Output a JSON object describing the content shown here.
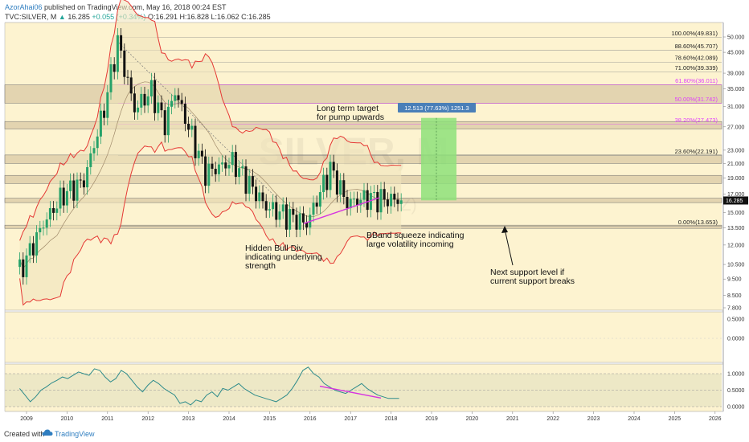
{
  "header": {
    "author": "AzorAhai06",
    "published": "published on TradingView.com, May 16, 2018 00:24 EST",
    "symbol": "TVC:SILVER, M",
    "last": "16.285",
    "change": "+0.055 (+0.34%)",
    "open": "O:16.291",
    "high": "H:16.828",
    "low": "L:16.062",
    "close": "C:16.285"
  },
  "footer": {
    "created": "Created with",
    "brand": "TradingView"
  },
  "watermark": "SILVER, M",
  "watermark_sub": "(USD/OZ)",
  "colors": {
    "background": "#fdf3d0",
    "up_candle": "#26a269",
    "down_candle": "#111111",
    "bband": "#e53935",
    "fib_line": "#888888",
    "fib_magenta": "#e040fb",
    "divergence": "#d633e0",
    "target_box": "#8ee07a",
    "rsi_line": "#2e8b8b",
    "price_tag": "#111111"
  },
  "chart_data": {
    "type": "candlestick",
    "timeframe": "Monthly",
    "x_ticks": [
      "2009",
      "2010",
      "2011",
      "2012",
      "2013",
      "2014",
      "2015",
      "2016",
      "2017",
      "2018",
      "2019",
      "2020",
      "2021",
      "2022",
      "2023",
      "2024",
      "2025",
      "2026"
    ],
    "y_scale": "log",
    "y_ticks": [
      "50.000",
      "45.000",
      "39.000",
      "35.000",
      "31.000",
      "27.000",
      "23.000",
      "21.000",
      "19.000",
      "17.000",
      "15.000",
      "13.500",
      "12.000",
      "10.500",
      "9.500",
      "8.500",
      "7.800"
    ],
    "last_price": "16.285",
    "ohlc_anchors": [
      {
        "date": "2008-11",
        "close": 10.0
      },
      {
        "date": "2009-06",
        "close": 13.9
      },
      {
        "date": "2009-12",
        "close": 17.0
      },
      {
        "date": "2010-06",
        "close": 18.6
      },
      {
        "date": "2010-12",
        "close": 30.6
      },
      {
        "date": "2011-04",
        "close": 48.6
      },
      {
        "date": "2011-09",
        "close": 30.5
      },
      {
        "date": "2012-02",
        "close": 34.5
      },
      {
        "date": "2012-06",
        "close": 27.5
      },
      {
        "date": "2012-09",
        "close": 34.5
      },
      {
        "date": "2013-06",
        "close": 19.7
      },
      {
        "date": "2014-02",
        "close": 21.3
      },
      {
        "date": "2014-12",
        "close": 15.6
      },
      {
        "date": "2015-12",
        "close": 13.9
      },
      {
        "date": "2016-07",
        "close": 20.3
      },
      {
        "date": "2016-12",
        "close": 16.0
      },
      {
        "date": "2017-06",
        "close": 16.6
      },
      {
        "date": "2018-04",
        "close": 16.3
      }
    ],
    "fib_levels": [
      {
        "label": "100.00%(49.831)",
        "value": 49.831,
        "magenta": false
      },
      {
        "label": "88.60%(45.707)",
        "value": 45.707,
        "magenta": false
      },
      {
        "label": "78.60%(42.089)",
        "value": 42.089,
        "magenta": false
      },
      {
        "label": "71.00%(39.339)",
        "value": 39.339,
        "magenta": false
      },
      {
        "label": "61.80%(36.011)",
        "value": 36.011,
        "magenta": true
      },
      {
        "label": "50.00%(31.742)",
        "value": 31.742,
        "magenta": true
      },
      {
        "label": "38.20%(27.473)",
        "value": 27.473,
        "magenta": true
      },
      {
        "label": "23.60%(22.191)",
        "value": 22.191,
        "magenta": false
      },
      {
        "label": "0.00%(13.653)",
        "value": 13.653,
        "magenta": false
      }
    ],
    "target_label": "12.513 (77.63%) 1251.3",
    "annotations": [
      "Long term target",
      "for pump upwards",
      "Hidden Bull Div",
      "indicating underlying",
      "strength",
      "BBand squeeze indicating",
      "large volatility incoming",
      "Next support level if",
      "current support breaks"
    ],
    "panel2_ticks": [
      "0.5000",
      "0.0000"
    ],
    "panel3_ticks": [
      "1.0000",
      "0.5000",
      "0.0000"
    ],
    "rsi_series": [
      0.55,
      0.35,
      0.15,
      0.3,
      0.5,
      0.6,
      0.72,
      0.8,
      0.9,
      0.85,
      0.95,
      1.05,
      1.0,
      0.95,
      1.15,
      1.1,
      0.9,
      0.75,
      0.85,
      1.1,
      1.0,
      0.8,
      0.6,
      0.45,
      0.65,
      0.8,
      0.7,
      0.55,
      0.45,
      0.35,
      0.1,
      0.15,
      0.05,
      0.2,
      0.15,
      0.35,
      0.45,
      0.3,
      0.55,
      0.5,
      0.6,
      0.7,
      0.55,
      0.45,
      0.35,
      0.3,
      0.25,
      0.2,
      0.15,
      0.25,
      0.35,
      0.55,
      0.8,
      1.1,
      1.2,
      1.0,
      0.9,
      0.7,
      0.6,
      0.5,
      0.45,
      0.4,
      0.5,
      0.6,
      0.7,
      0.55,
      0.45,
      0.35,
      0.3,
      0.25,
      0.25,
      0.25
    ],
    "divergence_rsi": "downward line under RSI from 2016 to 2018"
  }
}
